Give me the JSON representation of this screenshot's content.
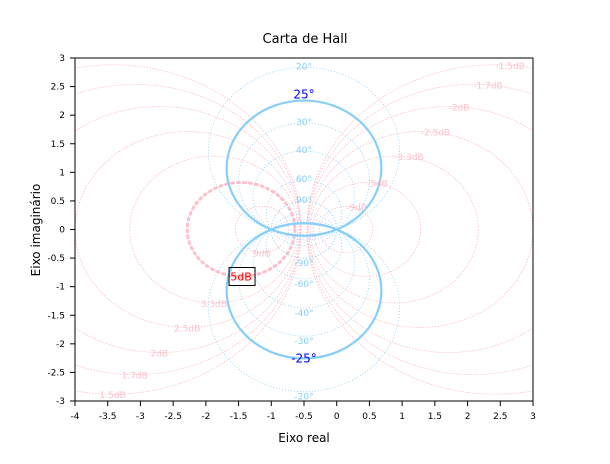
{
  "chart_data": {
    "type": "line",
    "title": "Carta de Hall",
    "xlabel": "Eixo real",
    "ylabel": "Eixo imaginário",
    "xlim": [
      -4,
      3
    ],
    "ylim": [
      -3,
      3
    ],
    "xticks": [
      "-4",
      "-3.5",
      "-3",
      "-2.5",
      "-2",
      "-1.5",
      "-1",
      "-0.5",
      "0",
      "0.5",
      "1",
      "1.5",
      "2",
      "2.5",
      "3"
    ],
    "yticks": [
      "-3",
      "-2.5",
      "-2",
      "-1.5",
      "-1",
      "-0.5",
      "0",
      "0.5",
      "1",
      "1.5",
      "2",
      "2.5",
      "3"
    ],
    "grid": false,
    "magnitude_contours_db": [
      9,
      5,
      3.3,
      2.5,
      2,
      1.7,
      1.5,
      -1.5,
      -1.7,
      -2,
      -2.5,
      -3.3,
      -5,
      -9
    ],
    "magnitude_labels": [
      "9dB",
      "5dB",
      "3.3dB",
      "2.5dB",
      "2dB",
      "1.7dB",
      "1.5dB",
      "-1.5dB",
      "-1.7dB",
      "-2dB",
      "-2.5dB",
      "-3.3dB",
      "-5dB",
      "-9dB"
    ],
    "phase_contours_deg": [
      20,
      25,
      30,
      40,
      60,
      90,
      -20,
      -25,
      -30,
      -40,
      -60,
      -90
    ],
    "phase_labels": [
      "20°",
      "25°",
      "30°",
      "40°",
      "60°",
      "90°",
      "-20°",
      "-25°",
      "-30°",
      "-40°",
      "-60°",
      "-90°"
    ],
    "highlight_magnitude_db": 5,
    "highlight_magnitude_label": "5dB",
    "highlight_phase_deg": 25,
    "colors": {
      "magnitude": "#ffc0cb",
      "phase": "#87cefa",
      "highlight_label": "#ff0000",
      "highlight_phase_label": "#0000ff",
      "frame": "#000000"
    }
  }
}
